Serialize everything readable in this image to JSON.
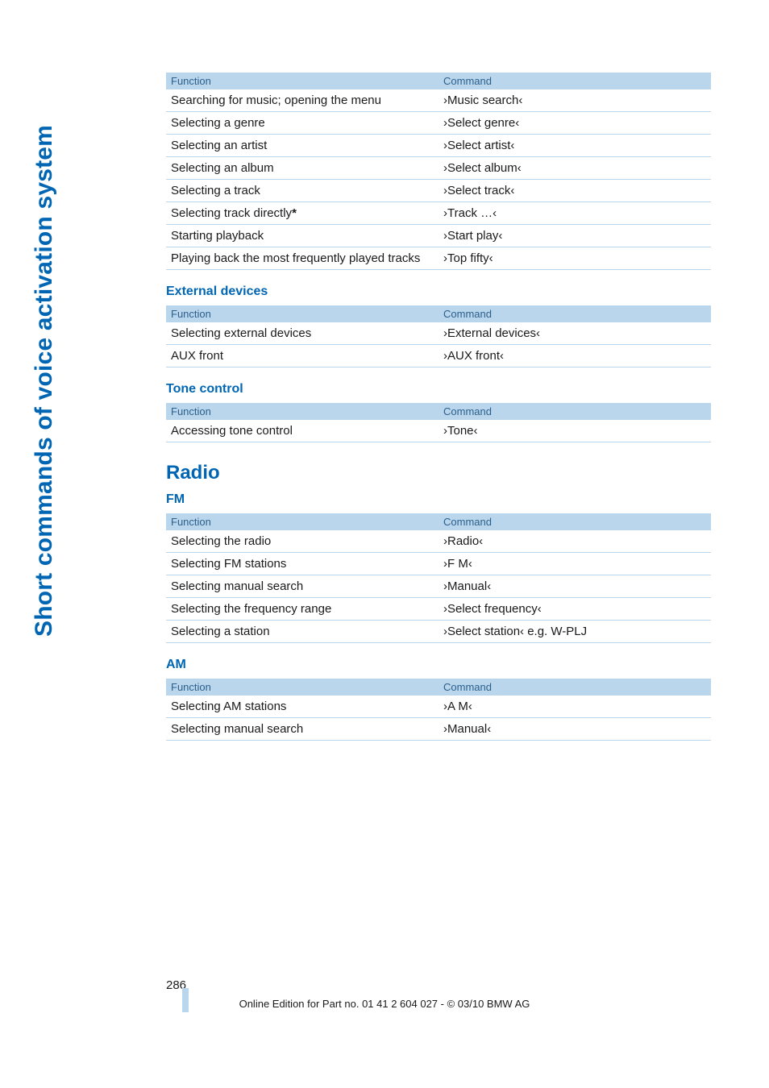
{
  "side_label": "Short commands of voice activation system",
  "tables": {
    "music": {
      "header": [
        "Function",
        "Command"
      ],
      "rows": [
        [
          "Searching for music; opening the menu",
          "›Music search‹"
        ],
        [
          "Selecting a genre",
          "›Select genre‹"
        ],
        [
          "Selecting an artist",
          "›Select artist‹"
        ],
        [
          "Selecting an album",
          "›Select album‹"
        ],
        [
          "Selecting a track",
          "›Select track‹"
        ],
        [
          "Selecting track directly*",
          "›Track …‹"
        ],
        [
          "Starting playback",
          "›Start play‹"
        ],
        [
          "Playing back the most frequently played tracks",
          "›Top fifty‹"
        ]
      ]
    },
    "external": {
      "title": "External devices",
      "header": [
        "Function",
        "Command"
      ],
      "rows": [
        [
          "Selecting external devices",
          "›External devices‹"
        ],
        [
          "AUX front",
          "›AUX front‹"
        ]
      ]
    },
    "tone": {
      "title": "Tone control",
      "header": [
        "Function",
        "Command"
      ],
      "rows": [
        [
          "Accessing tone control",
          "›Tone‹"
        ]
      ]
    },
    "fm": {
      "section": "Radio",
      "title": "FM",
      "header": [
        "Function",
        "Command"
      ],
      "rows": [
        [
          "Selecting the radio",
          "›Radio‹"
        ],
        [
          "Selecting FM stations",
          "›F M‹"
        ],
        [
          "Selecting manual search",
          "›Manual‹"
        ],
        [
          "Selecting the frequency range",
          "›Select frequency‹"
        ],
        [
          "Selecting a station",
          "›Select station‹ e.g. W-PLJ"
        ]
      ]
    },
    "am": {
      "title": "AM",
      "header": [
        "Function",
        "Command"
      ],
      "rows": [
        [
          "Selecting AM stations",
          "›A M‹"
        ],
        [
          "Selecting manual search",
          "›Manual‹"
        ]
      ]
    }
  },
  "page_number": "286",
  "footer": "Online Edition for Part no. 01 41 2 604 027 - © 03/10 BMW AG",
  "colors": {
    "header_bg": "#bad6ed",
    "header_text": "#2b5f8c",
    "border": "#bad6ed",
    "heading": "#0066b3",
    "body_text": "#1a1a1a"
  }
}
